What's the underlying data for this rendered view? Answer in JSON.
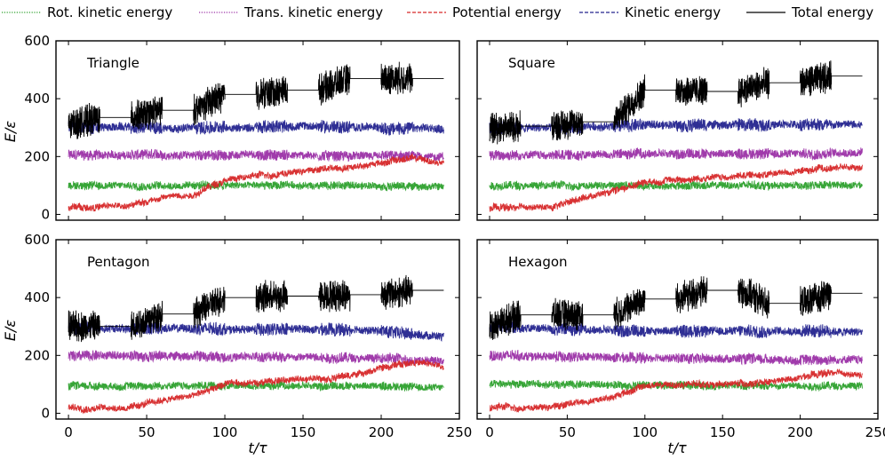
{
  "chart_data": {
    "type": "line",
    "legend": {
      "placement": "top",
      "entries": [
        {
          "name": "Rot. kinetic energy",
          "color": "#2ca02c",
          "style": "dotted"
        },
        {
          "name": "Trans. kinetic energy",
          "color": "#9b30a6",
          "style": "dotted"
        },
        {
          "name": "Potential energy",
          "color": "#d62728",
          "style": "dashed"
        },
        {
          "name": "Kinetic energy",
          "color": "#23238e",
          "style": "dashed"
        },
        {
          "name": "Total energy",
          "color": "#000000",
          "style": "solid"
        }
      ]
    },
    "xlabel": "t/τ",
    "ylabel": "E/ε",
    "xlim": [
      -8,
      250
    ],
    "ylim": [
      -20,
      600
    ],
    "xticks": [
      0,
      50,
      100,
      150,
      200,
      250
    ],
    "yticks": [
      0,
      200,
      400,
      600
    ],
    "grid": false,
    "heated_intervals": [
      [
        0,
        20
      ],
      [
        40,
        60
      ],
      [
        80,
        100
      ],
      [
        120,
        140
      ],
      [
        160,
        180
      ],
      [
        200,
        220
      ]
    ],
    "panels": [
      {
        "title": "Triangle",
        "total_energy": [
          {
            "x": 0,
            "y": 310
          },
          {
            "x": 20,
            "y": 335
          },
          {
            "x": 40,
            "y": 335
          },
          {
            "x": 60,
            "y": 360
          },
          {
            "x": 80,
            "y": 360
          },
          {
            "x": 100,
            "y": 415
          },
          {
            "x": 120,
            "y": 415
          },
          {
            "x": 140,
            "y": 430
          },
          {
            "x": 160,
            "y": 430
          },
          {
            "x": 180,
            "y": 470
          },
          {
            "x": 200,
            "y": 470
          },
          {
            "x": 220,
            "y": 470
          },
          {
            "x": 240,
            "y": 470
          }
        ],
        "kinetic_energy": [
          {
            "x": 0,
            "y": 305
          },
          {
            "x": 50,
            "y": 300
          },
          {
            "x": 100,
            "y": 300
          },
          {
            "x": 150,
            "y": 305
          },
          {
            "x": 200,
            "y": 300
          },
          {
            "x": 240,
            "y": 295
          }
        ],
        "trans_kinetic_energy": [
          {
            "x": 0,
            "y": 205
          },
          {
            "x": 50,
            "y": 205
          },
          {
            "x": 100,
            "y": 205
          },
          {
            "x": 150,
            "y": 205
          },
          {
            "x": 200,
            "y": 200
          },
          {
            "x": 240,
            "y": 200
          }
        ],
        "rot_kinetic_energy": [
          {
            "x": 0,
            "y": 100
          },
          {
            "x": 50,
            "y": 100
          },
          {
            "x": 100,
            "y": 100
          },
          {
            "x": 150,
            "y": 100
          },
          {
            "x": 200,
            "y": 100
          },
          {
            "x": 240,
            "y": 95
          }
        ],
        "potential_energy": [
          {
            "x": 0,
            "y": 25
          },
          {
            "x": 40,
            "y": 30
          },
          {
            "x": 60,
            "y": 60
          },
          {
            "x": 80,
            "y": 70
          },
          {
            "x": 100,
            "y": 120
          },
          {
            "x": 140,
            "y": 145
          },
          {
            "x": 180,
            "y": 165
          },
          {
            "x": 220,
            "y": 195
          },
          {
            "x": 240,
            "y": 175
          }
        ]
      },
      {
        "title": "Square",
        "total_energy": [
          {
            "x": 0,
            "y": 300
          },
          {
            "x": 20,
            "y": 305
          },
          {
            "x": 40,
            "y": 305
          },
          {
            "x": 60,
            "y": 320
          },
          {
            "x": 80,
            "y": 320
          },
          {
            "x": 100,
            "y": 430
          },
          {
            "x": 120,
            "y": 430
          },
          {
            "x": 140,
            "y": 425
          },
          {
            "x": 160,
            "y": 425
          },
          {
            "x": 180,
            "y": 455
          },
          {
            "x": 200,
            "y": 455
          },
          {
            "x": 220,
            "y": 478
          },
          {
            "x": 240,
            "y": 478
          }
        ],
        "kinetic_energy": [
          {
            "x": 0,
            "y": 300
          },
          {
            "x": 50,
            "y": 298
          },
          {
            "x": 100,
            "y": 310
          },
          {
            "x": 150,
            "y": 310
          },
          {
            "x": 200,
            "y": 310
          },
          {
            "x": 240,
            "y": 312
          }
        ],
        "trans_kinetic_energy": [
          {
            "x": 0,
            "y": 205
          },
          {
            "x": 50,
            "y": 205
          },
          {
            "x": 100,
            "y": 210
          },
          {
            "x": 150,
            "y": 210
          },
          {
            "x": 200,
            "y": 210
          },
          {
            "x": 240,
            "y": 215
          }
        ],
        "rot_kinetic_energy": [
          {
            "x": 0,
            "y": 100
          },
          {
            "x": 50,
            "y": 100
          },
          {
            "x": 100,
            "y": 100
          },
          {
            "x": 150,
            "y": 100
          },
          {
            "x": 200,
            "y": 100
          },
          {
            "x": 240,
            "y": 100
          }
        ],
        "potential_energy": [
          {
            "x": 0,
            "y": 22
          },
          {
            "x": 40,
            "y": 25
          },
          {
            "x": 60,
            "y": 60
          },
          {
            "x": 80,
            "y": 80
          },
          {
            "x": 100,
            "y": 115
          },
          {
            "x": 140,
            "y": 125
          },
          {
            "x": 180,
            "y": 140
          },
          {
            "x": 220,
            "y": 160
          },
          {
            "x": 240,
            "y": 165
          }
        ]
      },
      {
        "title": "Pentagon",
        "total_energy": [
          {
            "x": 0,
            "y": 300
          },
          {
            "x": 20,
            "y": 300
          },
          {
            "x": 40,
            "y": 300
          },
          {
            "x": 60,
            "y": 343
          },
          {
            "x": 80,
            "y": 343
          },
          {
            "x": 100,
            "y": 400
          },
          {
            "x": 120,
            "y": 400
          },
          {
            "x": 140,
            "y": 405
          },
          {
            "x": 160,
            "y": 405
          },
          {
            "x": 180,
            "y": 410
          },
          {
            "x": 200,
            "y": 410
          },
          {
            "x": 220,
            "y": 425
          },
          {
            "x": 240,
            "y": 425
          }
        ],
        "kinetic_energy": [
          {
            "x": 0,
            "y": 295
          },
          {
            "x": 50,
            "y": 295
          },
          {
            "x": 100,
            "y": 290
          },
          {
            "x": 150,
            "y": 290
          },
          {
            "x": 200,
            "y": 285
          },
          {
            "x": 240,
            "y": 265
          }
        ],
        "trans_kinetic_energy": [
          {
            "x": 0,
            "y": 200
          },
          {
            "x": 50,
            "y": 200
          },
          {
            "x": 100,
            "y": 195
          },
          {
            "x": 150,
            "y": 195
          },
          {
            "x": 200,
            "y": 190
          },
          {
            "x": 240,
            "y": 180
          }
        ],
        "rot_kinetic_energy": [
          {
            "x": 0,
            "y": 95
          },
          {
            "x": 50,
            "y": 95
          },
          {
            "x": 100,
            "y": 95
          },
          {
            "x": 150,
            "y": 95
          },
          {
            "x": 200,
            "y": 95
          },
          {
            "x": 240,
            "y": 88
          }
        ],
        "potential_energy": [
          {
            "x": 0,
            "y": 20
          },
          {
            "x": 40,
            "y": 20
          },
          {
            "x": 60,
            "y": 45
          },
          {
            "x": 80,
            "y": 60
          },
          {
            "x": 100,
            "y": 100
          },
          {
            "x": 140,
            "y": 115
          },
          {
            "x": 180,
            "y": 130
          },
          {
            "x": 220,
            "y": 180
          },
          {
            "x": 240,
            "y": 160
          }
        ]
      },
      {
        "title": "Hexagon",
        "total_energy": [
          {
            "x": 0,
            "y": 300
          },
          {
            "x": 20,
            "y": 340
          },
          {
            "x": 40,
            "y": 340
          },
          {
            "x": 60,
            "y": 340
          },
          {
            "x": 80,
            "y": 340
          },
          {
            "x": 100,
            "y": 395
          },
          {
            "x": 120,
            "y": 395
          },
          {
            "x": 140,
            "y": 425
          },
          {
            "x": 160,
            "y": 425
          },
          {
            "x": 180,
            "y": 380
          },
          {
            "x": 200,
            "y": 380
          },
          {
            "x": 220,
            "y": 415
          },
          {
            "x": 240,
            "y": 415
          }
        ],
        "kinetic_energy": [
          {
            "x": 0,
            "y": 300
          },
          {
            "x": 50,
            "y": 290
          },
          {
            "x": 100,
            "y": 285
          },
          {
            "x": 150,
            "y": 285
          },
          {
            "x": 200,
            "y": 285
          },
          {
            "x": 240,
            "y": 280
          }
        ],
        "trans_kinetic_energy": [
          {
            "x": 0,
            "y": 200
          },
          {
            "x": 50,
            "y": 195
          },
          {
            "x": 100,
            "y": 190
          },
          {
            "x": 150,
            "y": 190
          },
          {
            "x": 200,
            "y": 185
          },
          {
            "x": 240,
            "y": 185
          }
        ],
        "rot_kinetic_energy": [
          {
            "x": 0,
            "y": 100
          },
          {
            "x": 50,
            "y": 100
          },
          {
            "x": 100,
            "y": 98
          },
          {
            "x": 150,
            "y": 95
          },
          {
            "x": 200,
            "y": 95
          },
          {
            "x": 240,
            "y": 95
          }
        ],
        "potential_energy": [
          {
            "x": 0,
            "y": 20
          },
          {
            "x": 40,
            "y": 22
          },
          {
            "x": 60,
            "y": 40
          },
          {
            "x": 80,
            "y": 60
          },
          {
            "x": 100,
            "y": 95
          },
          {
            "x": 140,
            "y": 100
          },
          {
            "x": 180,
            "y": 105
          },
          {
            "x": 220,
            "y": 140
          },
          {
            "x": 240,
            "y": 130
          }
        ]
      }
    ]
  }
}
